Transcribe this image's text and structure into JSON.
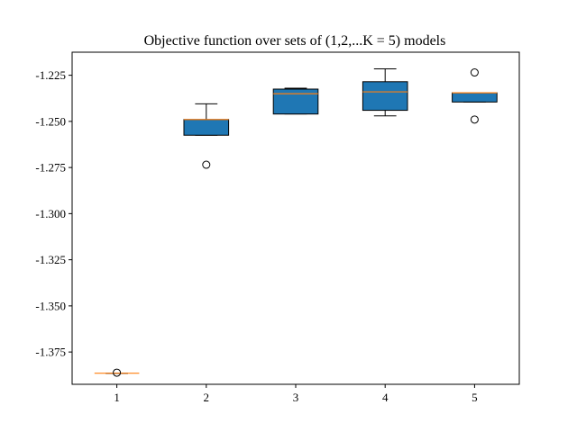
{
  "chart_data": {
    "type": "box",
    "title": "Objective function over sets of (1,2,...K = 5) models",
    "xlabel": "",
    "ylabel": "",
    "categories": [
      "1",
      "2",
      "3",
      "4",
      "5"
    ],
    "ylim": [
      -1.3925,
      -1.2125
    ],
    "yticks": [
      -1.225,
      -1.25,
      -1.275,
      -1.3,
      -1.325,
      -1.35,
      -1.375
    ],
    "ytick_labels": [
      "-1.225",
      "-1.250",
      "-1.275",
      "-1.300",
      "-1.325",
      "-1.350",
      "-1.375"
    ],
    "grid": false,
    "box_color": "#1f77b4",
    "median_color": "#ff7f0e",
    "boxes": [
      {
        "label": "1",
        "whislo": -1.3865,
        "q1": -1.3865,
        "med": -1.3865,
        "q3": -1.3865,
        "whishi": -1.3865,
        "fliers": [
          -1.3862
        ]
      },
      {
        "label": "2",
        "whislo": -1.2575,
        "q1": -1.2575,
        "med": -1.249,
        "q3": -1.249,
        "whishi": -1.2405,
        "fliers": [
          -1.2735
        ]
      },
      {
        "label": "3",
        "whislo": -1.246,
        "q1": -1.246,
        "med": -1.235,
        "q3": -1.2325,
        "whishi": -1.232,
        "fliers": []
      },
      {
        "label": "4",
        "whislo": -1.247,
        "q1": -1.244,
        "med": -1.234,
        "q3": -1.2285,
        "whishi": -1.2215,
        "fliers": []
      },
      {
        "label": "5",
        "whislo": -1.2395,
        "q1": -1.2395,
        "med": -1.2345,
        "q3": -1.2345,
        "whishi": -1.2345,
        "fliers": [
          -1.2235,
          -1.249
        ]
      }
    ]
  }
}
